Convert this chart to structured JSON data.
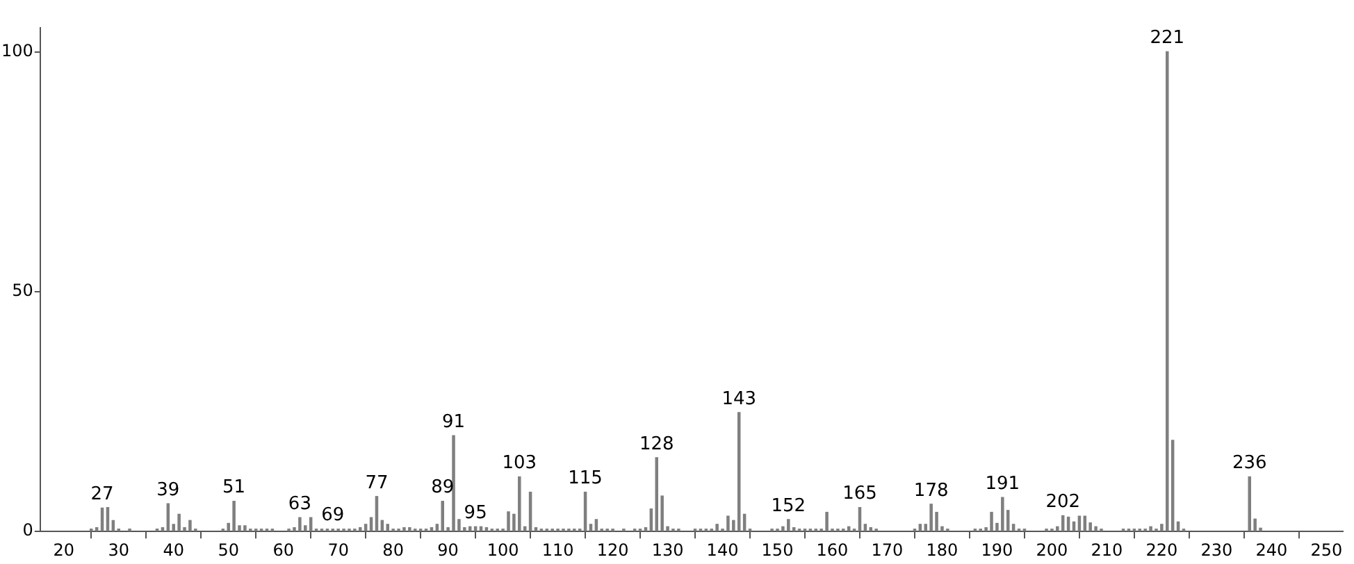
{
  "chart_data": {
    "type": "bar",
    "color": "#7f7f7f",
    "x": [
      25,
      26,
      27,
      28,
      29,
      30,
      32,
      37,
      38,
      39,
      40,
      41,
      42,
      43,
      44,
      49,
      50,
      51,
      52,
      53,
      54,
      55,
      56,
      57,
      58,
      61,
      62,
      63,
      64,
      65,
      66,
      67,
      68,
      69,
      70,
      71,
      72,
      73,
      74,
      75,
      76,
      77,
      78,
      79,
      80,
      81,
      82,
      83,
      84,
      85,
      86,
      87,
      88,
      89,
      90,
      91,
      92,
      93,
      94,
      95,
      96,
      97,
      98,
      99,
      100,
      101,
      102,
      103,
      104,
      105,
      106,
      107,
      108,
      109,
      110,
      111,
      112,
      113,
      114,
      115,
      116,
      117,
      118,
      119,
      120,
      122,
      124,
      125,
      126,
      127,
      128,
      129,
      130,
      131,
      132,
      135,
      136,
      137,
      138,
      139,
      140,
      141,
      142,
      143,
      144,
      145,
      149,
      150,
      151,
      152,
      153,
      154,
      155,
      156,
      157,
      158,
      159,
      160,
      161,
      162,
      163,
      164,
      165,
      166,
      167,
      168,
      175,
      176,
      177,
      178,
      179,
      180,
      181,
      186,
      187,
      188,
      189,
      190,
      191,
      192,
      193,
      194,
      195,
      199,
      200,
      201,
      202,
      203,
      204,
      205,
      206,
      207,
      208,
      209,
      213,
      214,
      215,
      216,
      217,
      218,
      219,
      220,
      221,
      222,
      223,
      224,
      236,
      237,
      238
    ],
    "values": [
      0.5,
      0.8,
      4.9,
      5,
      2.3,
      0.5,
      0.5,
      0.5,
      0.8,
      5.8,
      1.5,
      3.6,
      0.8,
      2.3,
      0.5,
      0.5,
      1.7,
      6.3,
      1.2,
      1.2,
      0.5,
      0.5,
      0.5,
      0.5,
      0.5,
      0.5,
      0.8,
      2.9,
      1.2,
      2.9,
      0.5,
      0.5,
      0.5,
      0.5,
      0.5,
      0.5,
      0.5,
      0.5,
      0.8,
      1.5,
      2.9,
      7.3,
      2.3,
      1.5,
      0.5,
      0.5,
      0.8,
      0.8,
      0.5,
      0.5,
      0.5,
      0.8,
      1.5,
      6.3,
      0.8,
      20,
      2.5,
      0.8,
      1,
      1,
      1,
      0.8,
      0.5,
      0.5,
      0.5,
      4.1,
      3.6,
      11.4,
      1,
      8.2,
      0.8,
      0.5,
      0.5,
      0.5,
      0.5,
      0.5,
      0.5,
      0.5,
      0.5,
      8.2,
      1.5,
      2.5,
      0.5,
      0.5,
      0.5,
      0.5,
      0.5,
      0.5,
      0.8,
      4.7,
      15.4,
      7.4,
      1,
      0.5,
      0.5,
      0.5,
      0.5,
      0.5,
      0.5,
      1.5,
      0.5,
      3.2,
      2.3,
      24.8,
      3.6,
      0.5,
      0.5,
      0.5,
      1,
      2.5,
      0.8,
      0.5,
      0.5,
      0.5,
      0.5,
      0.5,
      4,
      0.5,
      0.5,
      0.5,
      1,
      0.5,
      5,
      1.5,
      0.8,
      0.5,
      0.5,
      1.5,
      1.5,
      5.7,
      4,
      1,
      0.5,
      0.5,
      0.5,
      0.8,
      4,
      1.7,
      7.1,
      4.4,
      1.5,
      0.5,
      0.5,
      0.5,
      0.5,
      1,
      3.3,
      3,
      2,
      3.2,
      3.2,
      1.8,
      1,
      0.5,
      0.5,
      0.5,
      0.5,
      0.5,
      0.5,
      1,
      0.5,
      1.5,
      100,
      19,
      2,
      0.5,
      11.4,
      2.6,
      0.7
    ],
    "xlim": [
      15.7,
      253
    ],
    "xticks": [
      20,
      30,
      40,
      50,
      60,
      70,
      80,
      90,
      100,
      110,
      120,
      130,
      140,
      150,
      160,
      170,
      180,
      190,
      200,
      210,
      220,
      230,
      240,
      250
    ],
    "ylim": [
      0,
      105
    ],
    "yticks": [
      0,
      50,
      100
    ],
    "grid": false,
    "legend": false,
    "annotations": [
      {
        "text": "27",
        "x": 27,
        "y": 4.9
      },
      {
        "text": "39",
        "x": 39,
        "y": 5.8
      },
      {
        "text": "51",
        "x": 51,
        "y": 6.3
      },
      {
        "text": "63",
        "x": 63,
        "y": 2.9
      },
      {
        "text": "69",
        "x": 69,
        "y": 0.5
      },
      {
        "text": "77",
        "x": 77,
        "y": 7.3
      },
      {
        "text": "89",
        "x": 89,
        "y": 6.3
      },
      {
        "text": "91",
        "x": 91,
        "y": 20
      },
      {
        "text": "95",
        "x": 95,
        "y": 1
      },
      {
        "text": "103",
        "x": 103,
        "y": 11.4
      },
      {
        "text": "115",
        "x": 115,
        "y": 8.2
      },
      {
        "text": "128",
        "x": 128,
        "y": 15.4
      },
      {
        "text": "143",
        "x": 143,
        "y": 24.8
      },
      {
        "text": "152",
        "x": 152,
        "y": 2.5
      },
      {
        "text": "165",
        "x": 165,
        "y": 5
      },
      {
        "text": "178",
        "x": 178,
        "y": 5.7
      },
      {
        "text": "191",
        "x": 191,
        "y": 7.1
      },
      {
        "text": "202",
        "x": 202,
        "y": 3.3
      },
      {
        "text": "221",
        "x": 221,
        "y": 100
      },
      {
        "text": "236",
        "x": 236,
        "y": 11.4
      }
    ]
  }
}
